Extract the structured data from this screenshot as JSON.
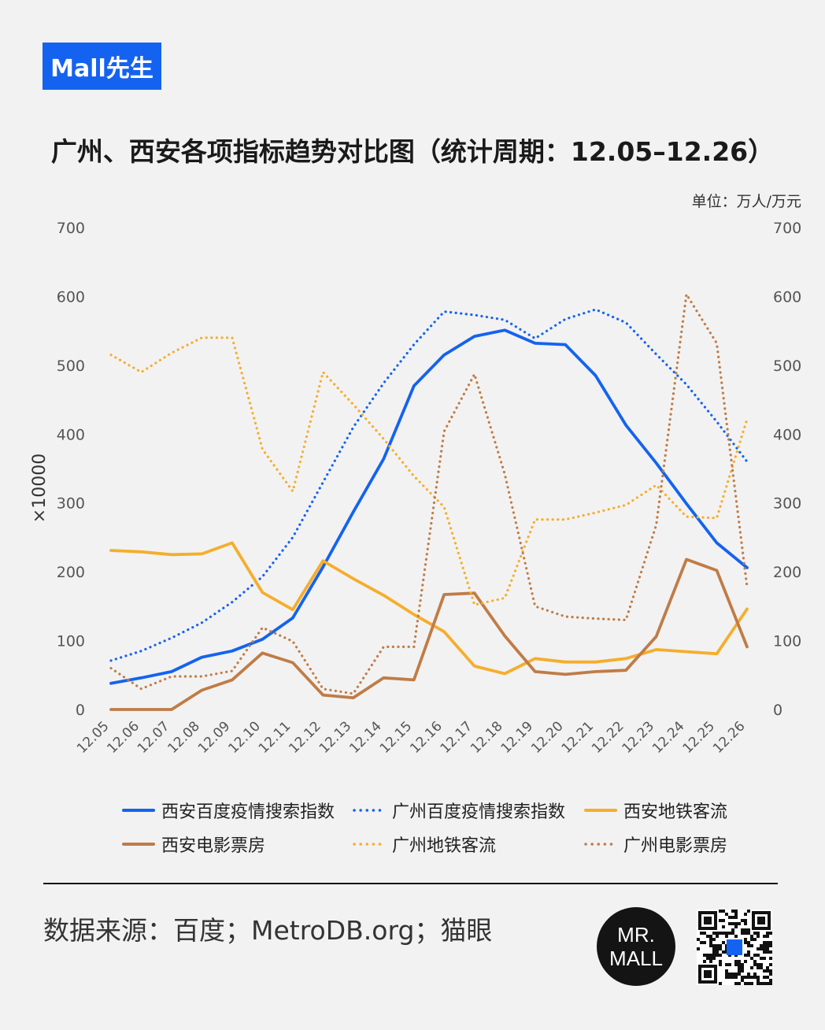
{
  "brand": "Mall先生",
  "title": "广州、西安各项指标趋势对比图（统计周期：12.05–12.26）",
  "unit": "单位：万人/万元",
  "footer": {
    "source": "数据来源：百度；MetroDB.org；猫眼",
    "logo_line1": "MR.",
    "logo_line2": "MALL"
  },
  "colors": {
    "brand": "#1463f0",
    "blue": "#1463f0",
    "orange": "#f5ae2c",
    "brown": "#c07c46"
  },
  "chart_data": {
    "type": "line",
    "categories": [
      "12.05",
      "12.06",
      "12.07",
      "12.08",
      "12.09",
      "12.10",
      "12.11",
      "12.12",
      "12.13",
      "12.14",
      "12.15",
      "12.16",
      "12.17",
      "12.18",
      "12.19",
      "12.20",
      "12.21",
      "12.22",
      "12.23",
      "12.24",
      "12.25",
      "12.26"
    ],
    "ylim": [
      0,
      700
    ],
    "yticks": [
      "0",
      "100",
      "200",
      "300",
      "400",
      "500",
      "600",
      "700"
    ],
    "left_axis_label": "×10000",
    "grid": false,
    "legend_position": "bottom",
    "series": [
      {
        "name": "西安百度疫情搜索指数",
        "color": "#1463f0",
        "style": "solid",
        "values": [
          38,
          46,
          55,
          76,
          85,
          102,
          133,
          207,
          287,
          364,
          470,
          515,
          542,
          551,
          532,
          530,
          485,
          413,
          358,
          299,
          242,
          206
        ]
      },
      {
        "name": "广州百度疫情搜索指数",
        "color": "#1463f0",
        "style": "dotted",
        "values": [
          71,
          85,
          104,
          126,
          156,
          193,
          250,
          330,
          410,
          474,
          530,
          578,
          573,
          566,
          539,
          567,
          581,
          562,
          516,
          472,
          418,
          360
        ]
      },
      {
        "name": "西安地铁客流",
        "color": "#f5ae2c",
        "style": "solid",
        "values": [
          231,
          229,
          225,
          226,
          242,
          170,
          145,
          216,
          190,
          166,
          138,
          113,
          63,
          52,
          74,
          69,
          69,
          74,
          87,
          84,
          81,
          146
        ]
      },
      {
        "name": "西安电影票房",
        "color": "#c07c46",
        "style": "solid",
        "values": [
          0,
          0,
          0,
          28,
          43,
          82,
          68,
          21,
          17,
          46,
          43,
          167,
          169,
          107,
          55,
          51,
          55,
          57,
          106,
          218,
          202,
          91
        ]
      },
      {
        "name": "广州地铁客流",
        "color": "#f5ae2c",
        "style": "dotted",
        "values": [
          515,
          490,
          518,
          540,
          540,
          378,
          317,
          490,
          443,
          393,
          339,
          294,
          152,
          162,
          276,
          276,
          286,
          297,
          326,
          280,
          278,
          422
        ]
      },
      {
        "name": "广州电影票房",
        "color": "#c07c46",
        "style": "dotted",
        "values": [
          60,
          30,
          48,
          48,
          56,
          119,
          99,
          30,
          23,
          91,
          91,
          404,
          487,
          342,
          150,
          135,
          132,
          130,
          268,
          603,
          532,
          178
        ]
      }
    ]
  }
}
